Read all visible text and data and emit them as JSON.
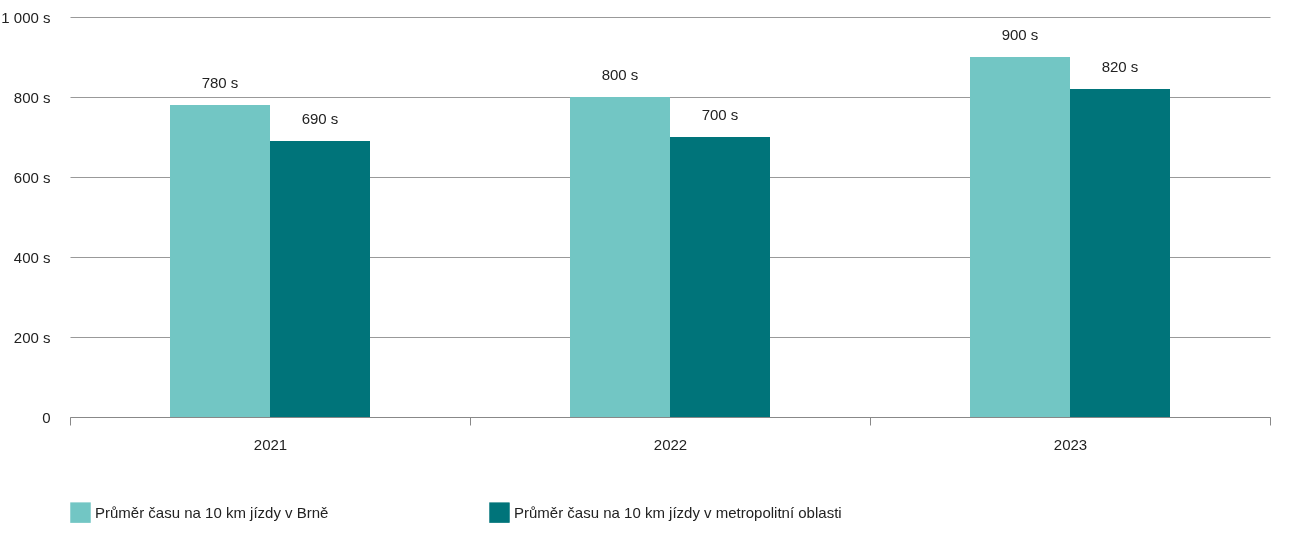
{
  "chart_data": {
    "type": "bar",
    "categories": [
      "2021",
      "2022",
      "2023"
    ],
    "series": [
      {
        "name": "Průměr času na 10 km jízdy v Brně",
        "color": "#72c6c4",
        "values": [
          780,
          800,
          900
        ],
        "value_labels": [
          "780 s",
          "800 s",
          "900 s"
        ]
      },
      {
        "name": "Průměr času na 10 km jízdy v metropolitní oblasti",
        "color": "#00747a",
        "values": [
          690,
          700,
          820
        ],
        "value_labels": [
          "690 s",
          "700 s",
          "820 s"
        ]
      }
    ],
    "ylim": [
      0,
      1000
    ],
    "yticks": [
      0,
      {
        "value": 200,
        "label": "200 s"
      },
      {
        "value": 400,
        "label": "400 s"
      },
      {
        "value": 600,
        "label": "600 s"
      },
      {
        "value": 800,
        "label": "800 s"
      },
      {
        "value": 1000,
        "label": "1 000 s"
      }
    ],
    "grid": "y",
    "legend": "bottom left"
  }
}
